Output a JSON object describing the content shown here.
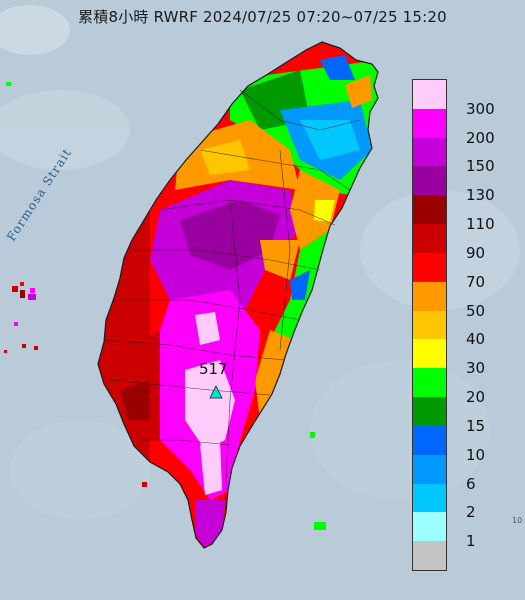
{
  "title": "累積8小時 RWRF 2024/07/25 07:20~07/25 15:20",
  "sea_label": "Formosa Strait",
  "max_value_label": "517",
  "corner_mark": "10",
  "legend": {
    "labels": [
      "300",
      "200",
      "150",
      "130",
      "110",
      "90",
      "70",
      "50",
      "40",
      "30",
      "20",
      "15",
      "10",
      "6",
      "2",
      "1"
    ],
    "colors": [
      "#fecbfb",
      "#fd00fd",
      "#c500d8",
      "#9a009f",
      "#9a0000",
      "#cc0000",
      "#fe0000",
      "#fe9900",
      "#fec600",
      "#fefe00",
      "#00fe00",
      "#009a00",
      "#0066fe",
      "#0199fe",
      "#00c8fe",
      "#9cfefe",
      "#c4c4c4"
    ]
  },
  "colors": {
    "sea": "#b9cbd9",
    "land_base": "#ff0000",
    "outline": "#1b1b1b"
  }
}
